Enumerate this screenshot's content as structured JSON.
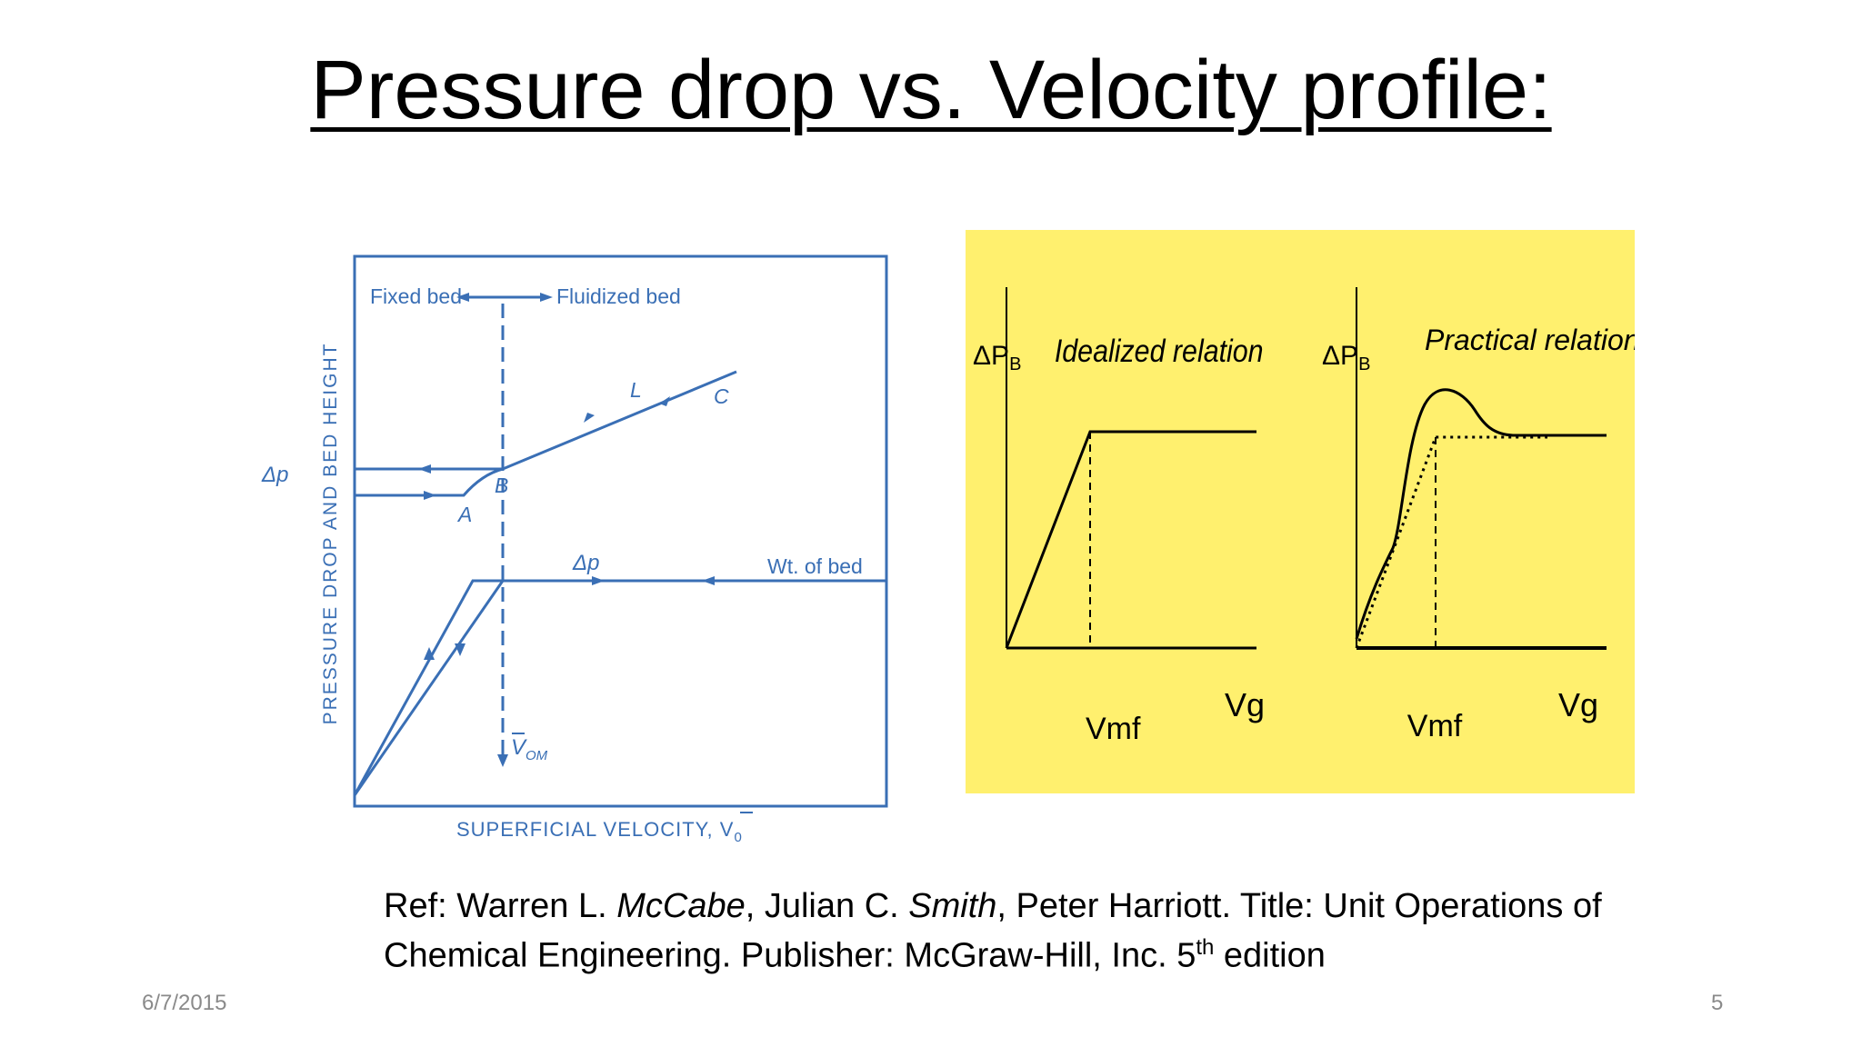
{
  "slide": {
    "title": "Pressure drop vs. Velocity profile:",
    "date": "6/7/2015",
    "page_number": "5"
  },
  "figure_left": {
    "y_label": "PRESSURE DROP AND BED HEIGHT",
    "x_label": "SUPERFICIAL VELOCITY, V",
    "x_label_subscript": "0",
    "dp_axis_label": "Δp",
    "fixed_bed": "Fixed bed",
    "fluidized_bed": "Fluidized bed",
    "point_a": "A",
    "point_b": "B",
    "point_c": "C",
    "label_l": "L",
    "dp_curve_label": "Δp",
    "weight_label": "Wt. of bed",
    "v_om": "V",
    "v_om_sub": "OM",
    "line_color": "#3a6fb5"
  },
  "figure_right": {
    "background": "#fff06e",
    "idealized": {
      "title": "Idealized relation",
      "y_label": "ΔP",
      "y_label_sub": "B",
      "x_label": "Vg",
      "vmf_label": "Vmf"
    },
    "practical": {
      "title": "Practical relation",
      "y_label": "ΔP",
      "y_label_sub": "B",
      "x_label": "Vg",
      "vmf_label": "Vmf"
    }
  },
  "reference": {
    "prefix": "Ref: Warren L. ",
    "author1_surname": "McCabe",
    "mid1": ", Julian C. ",
    "author2_surname": "Smith",
    "rest": ", Peter Harriott. Title: Unit Operations of Chemical Engineering. Publisher: McGraw-Hill, Inc. 5",
    "superscript": "th",
    "suffix": " edition"
  }
}
